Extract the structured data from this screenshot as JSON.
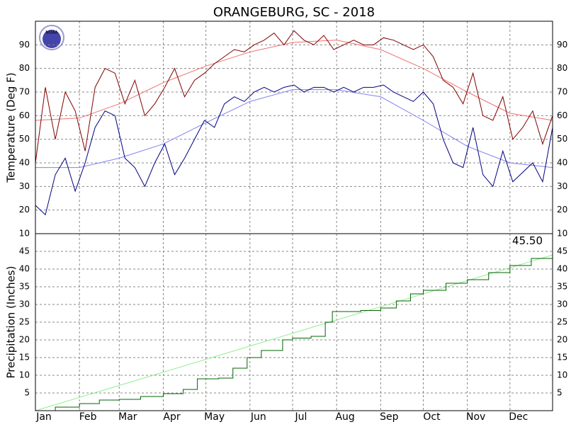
{
  "chart_data": [
    {
      "type": "line",
      "title": "ORANGEBURG, SC - 2018",
      "logo_text": "NOAA",
      "y_label": "Temperature (Deg F)",
      "xlim": [
        1,
        365
      ],
      "ylim": [
        10,
        100
      ],
      "yticks": [
        10,
        20,
        30,
        40,
        50,
        60,
        70,
        80,
        90
      ],
      "grid": true,
      "series": [
        {
          "name": "Normal High",
          "color": "#f07070",
          "x": [
            1,
            32,
            60,
            91,
            121,
            152,
            182,
            213,
            244,
            274,
            305,
            335,
            365
          ],
          "values": [
            58,
            59,
            65,
            74,
            81,
            87,
            91,
            92,
            88,
            80,
            70,
            61,
            58
          ]
        },
        {
          "name": "Normal Low",
          "color": "#8080f0",
          "x": [
            1,
            32,
            60,
            91,
            121,
            152,
            182,
            213,
            244,
            274,
            305,
            335,
            365
          ],
          "values": [
            38,
            38,
            42,
            48,
            57,
            66,
            71,
            71,
            68,
            58,
            47,
            40,
            38
          ]
        },
        {
          "name": "High",
          "color": "#800000",
          "x": [
            1,
            8,
            15,
            22,
            29,
            36,
            43,
            50,
            57,
            64,
            71,
            78,
            85,
            92,
            99,
            106,
            113,
            120,
            127,
            134,
            141,
            148,
            155,
            162,
            169,
            176,
            183,
            190,
            197,
            204,
            211,
            218,
            225,
            232,
            239,
            246,
            253,
            260,
            267,
            274,
            281,
            288,
            295,
            302,
            309,
            316,
            323,
            330,
            337,
            344,
            351,
            358,
            365
          ],
          "values": [
            40,
            72,
            50,
            70,
            62,
            45,
            72,
            80,
            78,
            65,
            75,
            60,
            65,
            72,
            80,
            68,
            75,
            78,
            82,
            85,
            88,
            87,
            90,
            92,
            95,
            90,
            96,
            92,
            90,
            94,
            88,
            90,
            92,
            90,
            90,
            93,
            92,
            90,
            88,
            90,
            85,
            75,
            72,
            65,
            78,
            60,
            58,
            68,
            50,
            55,
            62,
            48,
            60
          ]
        },
        {
          "name": "Low",
          "color": "#000080",
          "x": [
            1,
            8,
            15,
            22,
            29,
            36,
            43,
            50,
            57,
            64,
            71,
            78,
            85,
            92,
            99,
            106,
            113,
            120,
            127,
            134,
            141,
            148,
            155,
            162,
            169,
            176,
            183,
            190,
            197,
            204,
            211,
            218,
            225,
            232,
            239,
            246,
            253,
            260,
            267,
            274,
            281,
            288,
            295,
            302,
            309,
            316,
            323,
            330,
            337,
            344,
            351,
            358,
            365
          ],
          "values": [
            22,
            18,
            35,
            42,
            28,
            40,
            55,
            62,
            60,
            42,
            38,
            30,
            40,
            48,
            35,
            42,
            50,
            58,
            55,
            65,
            68,
            66,
            70,
            72,
            70,
            72,
            73,
            70,
            72,
            72,
            70,
            72,
            70,
            72,
            72,
            73,
            70,
            68,
            66,
            70,
            65,
            50,
            40,
            38,
            55,
            35,
            30,
            45,
            32,
            36,
            40,
            32,
            55
          ]
        }
      ]
    },
    {
      "type": "line",
      "y_label": "Precipitation (Inches)",
      "xlim": [
        1,
        365
      ],
      "ylim": [
        0,
        50
      ],
      "yticks": [
        5,
        10,
        15,
        20,
        25,
        30,
        35,
        40,
        45
      ],
      "grid": true,
      "xticks": [
        {
          "value": 1,
          "label": "Jan"
        },
        {
          "value": 32,
          "label": "Feb"
        },
        {
          "value": 60,
          "label": "Mar"
        },
        {
          "value": 91,
          "label": "Apr"
        },
        {
          "value": 121,
          "label": "May"
        },
        {
          "value": 152,
          "label": "Jun"
        },
        {
          "value": 182,
          "label": "Jul"
        },
        {
          "value": 213,
          "label": "Aug"
        },
        {
          "value": 244,
          "label": "Sep"
        },
        {
          "value": 274,
          "label": "Oct"
        },
        {
          "value": 305,
          "label": "Nov"
        },
        {
          "value": 335,
          "label": "Dec"
        }
      ],
      "series": [
        {
          "name": "Normal Precipitation",
          "color": "#90ee90",
          "x": [
            1,
            365
          ],
          "values": [
            0,
            44
          ]
        },
        {
          "name": "Precipitation",
          "color": "#006400",
          "step": true,
          "x": [
            1,
            15,
            32,
            46,
            60,
            75,
            91,
            105,
            115,
            130,
            140,
            150,
            160,
            175,
            182,
            195,
            205,
            210,
            230,
            244,
            255,
            265,
            274,
            290,
            305,
            320,
            335,
            350,
            365
          ],
          "values": [
            0,
            1,
            2,
            3,
            3.2,
            4,
            4.8,
            6,
            9,
            9.2,
            12,
            15,
            17,
            20,
            20.5,
            21,
            25,
            28,
            28.3,
            29,
            31,
            33,
            34,
            36,
            37,
            39,
            41,
            43,
            45.5
          ],
          "value_labels": [
            null,
            null,
            null,
            null,
            null,
            null,
            null,
            null,
            null,
            null,
            null,
            null,
            null,
            null,
            null,
            null,
            null,
            null,
            null,
            null,
            null,
            null,
            null,
            null,
            null,
            null,
            null,
            null,
            "45.50"
          ]
        }
      ]
    }
  ]
}
